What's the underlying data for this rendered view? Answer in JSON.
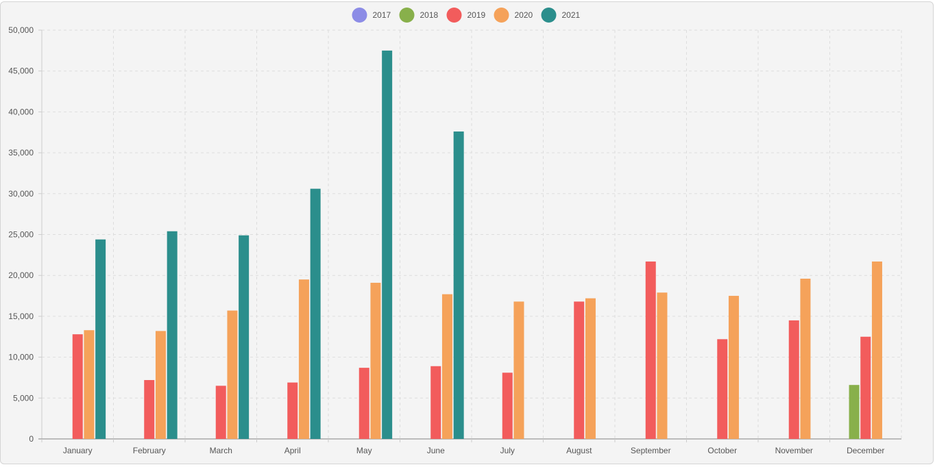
{
  "chart_data": {
    "type": "bar",
    "title": "",
    "xlabel": "",
    "ylabel": "",
    "ylim": [
      0,
      50000
    ],
    "yticks": [
      "0",
      "5,000",
      "10,000",
      "15,000",
      "20,000",
      "25,000",
      "30,000",
      "35,000",
      "40,000",
      "45,000",
      "50,000"
    ],
    "legend_position": "top-center",
    "grid": true,
    "categories": [
      "January",
      "February",
      "March",
      "April",
      "May",
      "June",
      "July",
      "August",
      "September",
      "October",
      "November",
      "December"
    ],
    "series": [
      {
        "name": "2017",
        "color": "#8c8ce6",
        "values": [
          0,
          0,
          0,
          0,
          0,
          0,
          0,
          0,
          0,
          0,
          0,
          0
        ]
      },
      {
        "name": "2018",
        "color": "#88b04b",
        "values": [
          0,
          0,
          0,
          0,
          0,
          0,
          0,
          0,
          0,
          0,
          0,
          6600
        ]
      },
      {
        "name": "2019",
        "color": "#f25c5c",
        "values": [
          12800,
          7200,
          6500,
          6900,
          8700,
          8900,
          8100,
          16800,
          21700,
          12200,
          14500,
          12500
        ]
      },
      {
        "name": "2020",
        "color": "#f5a25a",
        "values": [
          13300,
          13200,
          15700,
          19500,
          19100,
          17700,
          16800,
          17200,
          17900,
          17500,
          19600,
          21700
        ]
      },
      {
        "name": "2021",
        "color": "#2b8e8c",
        "values": [
          24400,
          25400,
          24900,
          30600,
          47500,
          37600,
          0,
          0,
          0,
          0,
          0,
          0
        ]
      }
    ]
  }
}
